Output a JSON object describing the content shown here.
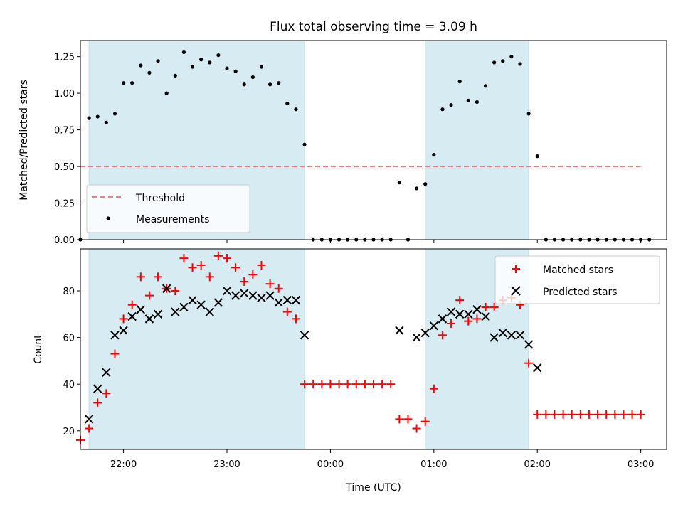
{
  "chart_data": {
    "type": "scatter",
    "title": "Flux total observing time = 3.09 h",
    "xlabel": "Time (UTC)",
    "x_ticks": [
      "22:00",
      "23:00",
      "00:00",
      "01:00",
      "02:00",
      "03:00"
    ],
    "x_range": [
      "21:35",
      "03:15"
    ],
    "observing_windows": [
      [
        "21:40",
        "23:45"
      ],
      [
        "00:55",
        "01:55"
      ]
    ],
    "panels": [
      {
        "ylabel": "Matched/Predicted stars",
        "ylim": [
          0,
          1.36
        ],
        "y_ticks": [
          "0.00",
          "0.25",
          "0.50",
          "0.75",
          "1.00",
          "1.25"
        ],
        "legend": [
          "Threshold",
          "Measurements"
        ],
        "legend_position": "lower-left",
        "threshold": {
          "name": "Threshold",
          "value": 0.5,
          "x_range": [
            "21:35",
            "03:00"
          ],
          "color": "#f08080",
          "style": "dashed"
        },
        "series": [
          {
            "name": "Measurements",
            "marker": "dot",
            "color": "#000000",
            "points": [
              [
                "21:35",
                0.0
              ],
              [
                "21:40",
                0.83
              ],
              [
                "21:45",
                0.84
              ],
              [
                "21:50",
                0.8
              ],
              [
                "21:55",
                0.86
              ],
              [
                "22:00",
                1.07
              ],
              [
                "22:05",
                1.07
              ],
              [
                "22:10",
                1.19
              ],
              [
                "22:15",
                1.14
              ],
              [
                "22:20",
                1.22
              ],
              [
                "22:25",
                1.0
              ],
              [
                "22:30",
                1.12
              ],
              [
                "22:35",
                1.28
              ],
              [
                "22:40",
                1.18
              ],
              [
                "22:45",
                1.23
              ],
              [
                "22:50",
                1.21
              ],
              [
                "22:55",
                1.26
              ],
              [
                "23:00",
                1.17
              ],
              [
                "23:05",
                1.15
              ],
              [
                "23:10",
                1.06
              ],
              [
                "23:15",
                1.11
              ],
              [
                "23:20",
                1.18
              ],
              [
                "23:25",
                1.06
              ],
              [
                "23:30",
                1.07
              ],
              [
                "23:35",
                0.93
              ],
              [
                "23:40",
                0.89
              ],
              [
                "23:45",
                0.65
              ],
              [
                "23:50",
                0.0
              ],
              [
                "23:55",
                0.0
              ],
              [
                "00:00",
                0.0
              ],
              [
                "00:05",
                0.0
              ],
              [
                "00:10",
                0.0
              ],
              [
                "00:15",
                0.0
              ],
              [
                "00:20",
                0.0
              ],
              [
                "00:25",
                0.0
              ],
              [
                "00:30",
                0.0
              ],
              [
                "00:35",
                0.0
              ],
              [
                "00:40",
                0.39
              ],
              [
                "00:45",
                0.0
              ],
              [
                "00:50",
                0.35
              ],
              [
                "00:55",
                0.38
              ],
              [
                "01:00",
                0.58
              ],
              [
                "01:05",
                0.89
              ],
              [
                "01:10",
                0.92
              ],
              [
                "01:15",
                1.08
              ],
              [
                "01:20",
                0.95
              ],
              [
                "01:25",
                0.94
              ],
              [
                "01:30",
                1.05
              ],
              [
                "01:35",
                1.21
              ],
              [
                "01:40",
                1.22
              ],
              [
                "01:45",
                1.25
              ],
              [
                "01:50",
                1.2
              ],
              [
                "01:55",
                0.86
              ],
              [
                "02:00",
                0.57
              ],
              [
                "02:05",
                0.0
              ],
              [
                "02:10",
                0.0
              ],
              [
                "02:15",
                0.0
              ],
              [
                "02:20",
                0.0
              ],
              [
                "02:25",
                0.0
              ],
              [
                "02:30",
                0.0
              ],
              [
                "02:35",
                0.0
              ],
              [
                "02:40",
                0.0
              ],
              [
                "02:45",
                0.0
              ],
              [
                "02:50",
                0.0
              ],
              [
                "02:55",
                0.0
              ],
              [
                "03:00",
                0.0
              ],
              [
                "03:05",
                0.0
              ]
            ]
          }
        ]
      },
      {
        "ylabel": "Count",
        "ylim": [
          12,
          98
        ],
        "y_ticks": [
          "20",
          "40",
          "60",
          "80"
        ],
        "legend": [
          "Matched stars",
          "Predicted stars"
        ],
        "legend_position": "upper-right",
        "series": [
          {
            "name": "Matched stars",
            "marker": "plus",
            "color": "#ff0000",
            "points": [
              [
                "21:35",
                16
              ],
              [
                "21:40",
                21
              ],
              [
                "21:45",
                32
              ],
              [
                "21:50",
                36
              ],
              [
                "21:55",
                53
              ],
              [
                "22:00",
                68
              ],
              [
                "22:05",
                74
              ],
              [
                "22:10",
                86
              ],
              [
                "22:15",
                78
              ],
              [
                "22:20",
                86
              ],
              [
                "22:25",
                81
              ],
              [
                "22:30",
                80
              ],
              [
                "22:35",
                94
              ],
              [
                "22:40",
                90
              ],
              [
                "22:45",
                91
              ],
              [
                "22:50",
                86
              ],
              [
                "22:55",
                95
              ],
              [
                "23:00",
                94
              ],
              [
                "23:05",
                90
              ],
              [
                "23:10",
                84
              ],
              [
                "23:15",
                87
              ],
              [
                "23:20",
                91
              ],
              [
                "23:25",
                83
              ],
              [
                "23:30",
                81
              ],
              [
                "23:35",
                71
              ],
              [
                "23:40",
                68
              ],
              [
                "23:45",
                40
              ],
              [
                "23:50",
                40
              ],
              [
                "23:55",
                40
              ],
              [
                "00:00",
                40
              ],
              [
                "00:05",
                40
              ],
              [
                "00:10",
                40
              ],
              [
                "00:15",
                40
              ],
              [
                "00:20",
                40
              ],
              [
                "00:25",
                40
              ],
              [
                "00:30",
                40
              ],
              [
                "00:35",
                40
              ],
              [
                "00:40",
                25
              ],
              [
                "00:45",
                25
              ],
              [
                "00:50",
                21
              ],
              [
                "00:55",
                24
              ],
              [
                "01:00",
                38
              ],
              [
                "01:05",
                61
              ],
              [
                "01:10",
                66
              ],
              [
                "01:15",
                76
              ],
              [
                "01:20",
                67
              ],
              [
                "01:25",
                68
              ],
              [
                "01:30",
                73
              ],
              [
                "01:35",
                73
              ],
              [
                "01:40",
                76
              ],
              [
                "01:45",
                77
              ],
              [
                "01:50",
                74
              ],
              [
                "01:55",
                49
              ],
              [
                "02:00",
                27
              ],
              [
                "02:05",
                27
              ],
              [
                "02:10",
                27
              ],
              [
                "02:15",
                27
              ],
              [
                "02:20",
                27
              ],
              [
                "02:25",
                27
              ],
              [
                "02:30",
                27
              ],
              [
                "02:35",
                27
              ],
              [
                "02:40",
                27
              ],
              [
                "02:45",
                27
              ],
              [
                "02:50",
                27
              ],
              [
                "02:55",
                27
              ],
              [
                "03:00",
                27
              ]
            ]
          },
          {
            "name": "Predicted stars",
            "marker": "x",
            "color": "#000000",
            "points": [
              [
                "21:40",
                25
              ],
              [
                "21:45",
                38
              ],
              [
                "21:50",
                45
              ],
              [
                "21:55",
                61
              ],
              [
                "22:00",
                63
              ],
              [
                "22:05",
                69
              ],
              [
                "22:10",
                72
              ],
              [
                "22:15",
                68
              ],
              [
                "22:20",
                70
              ],
              [
                "22:25",
                81
              ],
              [
                "22:30",
                71
              ],
              [
                "22:35",
                73
              ],
              [
                "22:40",
                76
              ],
              [
                "22:45",
                74
              ],
              [
                "22:50",
                71
              ],
              [
                "22:55",
                75
              ],
              [
                "23:00",
                80
              ],
              [
                "23:05",
                78
              ],
              [
                "23:10",
                79
              ],
              [
                "23:15",
                78
              ],
              [
                "23:20",
                77
              ],
              [
                "23:25",
                78
              ],
              [
                "23:30",
                75
              ],
              [
                "23:35",
                76
              ],
              [
                "23:40",
                76
              ],
              [
                "23:45",
                61
              ],
              [
                "00:40",
                63
              ],
              [
                "00:50",
                60
              ],
              [
                "00:55",
                62
              ],
              [
                "01:00",
                65
              ],
              [
                "01:05",
                68
              ],
              [
                "01:10",
                71
              ],
              [
                "01:15",
                70
              ],
              [
                "01:20",
                70
              ],
              [
                "01:25",
                72
              ],
              [
                "01:30",
                69
              ],
              [
                "01:35",
                60
              ],
              [
                "01:40",
                62
              ],
              [
                "01:45",
                61
              ],
              [
                "01:50",
                61
              ],
              [
                "01:55",
                57
              ],
              [
                "02:00",
                47
              ]
            ]
          }
        ]
      }
    ]
  }
}
